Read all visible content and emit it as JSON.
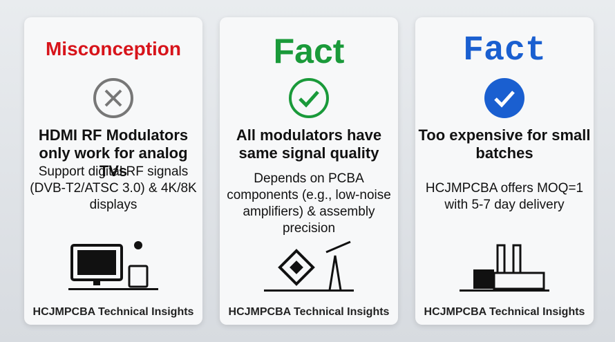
{
  "cards": [
    {
      "heading": "Misconception",
      "statement": "HDMI RF Modulators only work for analog TVs",
      "detail": "Support digital RF signals (DVB-T2/ATSC 3.0) & 4K/8K displays",
      "footer": "HCJMPCBA Technical Insights"
    },
    {
      "heading": "Fact",
      "statement": "All modulators have same signal quality",
      "detail": "Depends on PCBA components (e.g., low-noise amplifiers) & assembly precision",
      "footer": "HCJMPCBA Technical Insights"
    },
    {
      "heading": "Fact",
      "statement": "Too expensive for small batches",
      "detail": "HCJMPCBA offers MOQ=1 with 5-7 day delivery",
      "footer": "HCJMPCBA Technical Insights"
    }
  ]
}
